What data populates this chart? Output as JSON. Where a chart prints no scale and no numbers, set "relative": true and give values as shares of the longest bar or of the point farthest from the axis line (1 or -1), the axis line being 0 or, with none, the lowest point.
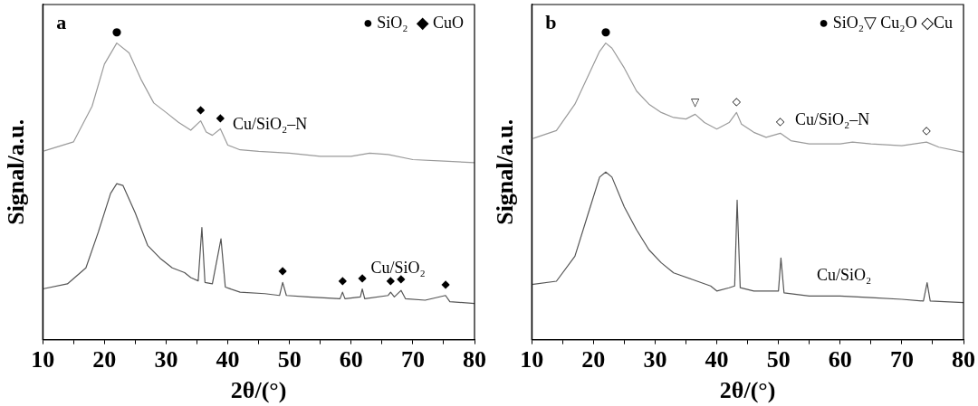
{
  "chart_data": [
    {
      "type": "line",
      "title": "a",
      "xlabel": "2θ/(°)",
      "ylabel": "Signal/a.u.",
      "relative": true,
      "xlim": [
        10,
        80
      ],
      "xticks": [
        10,
        {
          "value": 15,
          "label": null
        },
        20,
        {
          "value": 25,
          "label": null
        },
        30,
        {
          "value": 35,
          "label": null
        },
        40,
        {
          "value": 45,
          "label": null
        },
        50,
        {
          "value": 55,
          "label": null
        },
        60,
        {
          "value": 65,
          "label": null
        },
        70,
        {
          "value": 75,
          "label": null
        },
        80
      ],
      "series": [
        {
          "name": "Cu/SiO₂–N",
          "color": "#9a9a9a",
          "x": [
            10,
            15,
            18,
            20,
            22,
            24,
            26,
            28,
            30,
            32,
            34,
            35.6,
            36.5,
            37.5,
            38.8,
            40,
            42,
            45,
            50,
            55,
            60,
            63,
            66,
            70,
            75,
            80
          ],
          "values": [
            0.635,
            0.667,
            0.787,
            0.929,
            1,
            0.967,
            0.875,
            0.798,
            0.766,
            0.733,
            0.706,
            0.738,
            0.7,
            0.689,
            0.711,
            0.656,
            0.64,
            0.635,
            0.629,
            0.618,
            0.618,
            0.629,
            0.624,
            0.607,
            0.602,
            0.597
          ]
        },
        {
          "name": "Cu/SiO₂",
          "color": "#555555",
          "x": [
            10,
            14,
            17,
            19,
            21,
            22,
            23,
            25,
            27,
            29,
            31,
            33,
            34,
            35.2,
            35.8,
            36.3,
            37.5,
            38.9,
            39.6,
            42,
            46,
            48.4,
            48.9,
            49.5,
            53,
            58.2,
            58.6,
            59,
            61.5,
            61.8,
            62.2,
            66,
            66.4,
            67,
            68.1,
            68.8,
            72,
            75.3,
            76,
            80
          ],
          "values": [
            0.171,
            0.188,
            0.242,
            0.362,
            0.493,
            0.526,
            0.52,
            0.427,
            0.318,
            0.275,
            0.242,
            0.226,
            0.209,
            0.198,
            0.378,
            0.193,
            0.188,
            0.34,
            0.177,
            0.16,
            0.155,
            0.149,
            0.193,
            0.149,
            0.144,
            0.138,
            0.16,
            0.138,
            0.144,
            0.171,
            0.138,
            0.149,
            0.16,
            0.144,
            0.166,
            0.138,
            0.133,
            0.149,
            0.128,
            0.122
          ]
        }
      ],
      "annotations": [
        "● SiO₂  ◆ CuO",
        {
          "text": "●",
          "x": 22,
          "y": 1
        },
        {
          "text": "◆",
          "x": 35.6,
          "y": 0.738
        },
        {
          "text": "◆",
          "x": 38.8,
          "y": 0.711
        },
        {
          "text": "◆",
          "x": 48.9,
          "y": 0.193
        },
        {
          "text": "◆",
          "x": 58.6,
          "y": 0.16
        },
        {
          "text": "◆",
          "x": 61.8,
          "y": 0.171
        },
        {
          "text": "◆",
          "x": 66.4,
          "y": 0.16
        },
        {
          "text": "◆",
          "x": 68.1,
          "y": 0.166
        },
        {
          "text": "◆",
          "x": 75.3,
          "y": 0.149
        }
      ]
    },
    {
      "type": "line",
      "title": "b",
      "xlabel": "2θ/(°)",
      "ylabel": "Signal/a.u.",
      "relative": true,
      "xlim": [
        10,
        80
      ],
      "xticks": [
        10,
        {
          "value": 15,
          "label": null
        },
        20,
        {
          "value": 25,
          "label": null
        },
        30,
        {
          "value": 35,
          "label": null
        },
        40,
        {
          "value": 45,
          "label": null
        },
        50,
        {
          "value": 55,
          "label": null
        },
        60,
        {
          "value": 65,
          "label": null
        },
        70,
        {
          "value": 75,
          "label": null
        },
        80
      ],
      "series": [
        {
          "name": "Cu/SiO₂–N",
          "color": "#9a9a9a",
          "x": [
            10,
            14,
            17,
            19,
            21,
            22,
            23,
            25,
            27,
            29,
            31,
            33,
            35,
            36.5,
            38,
            40,
            42,
            43.2,
            44,
            46,
            48,
            50.3,
            52,
            55,
            60,
            62,
            65,
            70,
            74,
            76,
            80
          ],
          "values": [
            0.677,
            0.705,
            0.794,
            0.883,
            0.972,
            1,
            0.983,
            0.916,
            0.838,
            0.794,
            0.766,
            0.749,
            0.744,
            0.76,
            0.732,
            0.71,
            0.732,
            0.766,
            0.727,
            0.699,
            0.682,
            0.696,
            0.671,
            0.66,
            0.66,
            0.666,
            0.66,
            0.654,
            0.666,
            0.649,
            0.632
          ]
        },
        {
          "name": "Cu/SiO₂",
          "color": "#555555",
          "x": [
            10,
            14,
            17,
            19,
            21,
            22,
            23,
            25,
            27,
            29,
            31,
            33,
            36,
            39,
            40,
            42,
            42.9,
            43.3,
            43.8,
            46,
            50,
            50.4,
            50.9,
            55,
            60,
            65,
            70,
            73.5,
            74.1,
            74.6,
            80
          ],
          "values": [
            0.186,
            0.197,
            0.281,
            0.415,
            0.548,
            0.565,
            0.548,
            0.448,
            0.37,
            0.303,
            0.259,
            0.225,
            0.203,
            0.181,
            0.164,
            0.175,
            0.181,
            0.47,
            0.175,
            0.164,
            0.164,
            0.275,
            0.158,
            0.147,
            0.147,
            0.142,
            0.136,
            0.13,
            0.192,
            0.13,
            0.125
          ]
        }
      ],
      "annotations": [
        "● SiO₂▽ Cu₂O ◇Cu",
        {
          "text": "●",
          "x": 22,
          "y": 1
        },
        {
          "text": "▽",
          "x": 36.5,
          "y": 0.76
        },
        {
          "text": "◇",
          "x": 43.2,
          "y": 0.766
        },
        {
          "text": "◇",
          "x": 50.3,
          "y": 0.696
        },
        {
          "text": "◇",
          "x": 74,
          "y": 0.666
        }
      ]
    }
  ]
}
